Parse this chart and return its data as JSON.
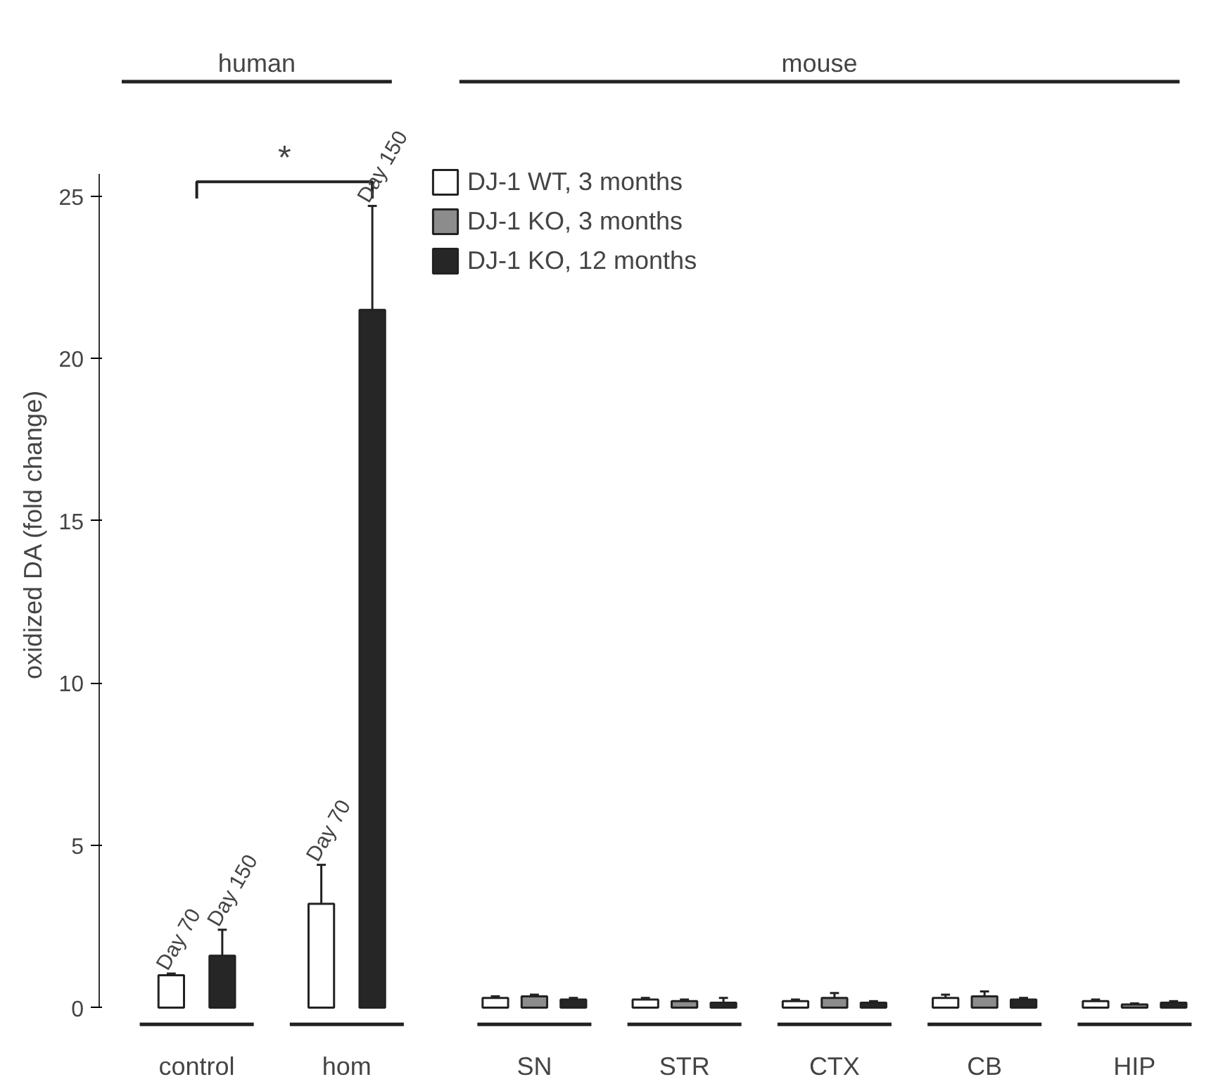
{
  "chart_data": {
    "type": "bar",
    "ylabel": "oxidized DA (fold change)",
    "categories": [
      "control",
      "hom",
      "SN",
      "STR",
      "CTX",
      "CB",
      "HIP"
    ],
    "series": [
      {
        "name": "Day 70",
        "color": "#ffffff",
        "values": [
          1.0,
          3.2,
          null,
          null,
          null,
          null,
          null
        ],
        "errors": [
          0.05,
          1.2,
          null,
          null,
          null,
          null,
          null
        ]
      },
      {
        "name": "Day 150",
        "color": "#262626",
        "values": [
          1.6,
          21.5,
          null,
          null,
          null,
          null,
          null
        ],
        "errors": [
          0.8,
          3.2,
          null,
          null,
          null,
          null,
          null
        ]
      },
      {
        "name": "DJ-1 WT, 3 months",
        "color": "#ffffff",
        "values": [
          null,
          null,
          0.3,
          0.25,
          0.2,
          0.3,
          0.2
        ],
        "errors": [
          null,
          null,
          0.05,
          0.05,
          0.05,
          0.1,
          0.05
        ]
      },
      {
        "name": "DJ-1 KO, 3 months",
        "color": "#8c8c8c",
        "values": [
          null,
          null,
          0.35,
          0.2,
          0.3,
          0.35,
          0.1
        ],
        "errors": [
          null,
          null,
          0.05,
          0.05,
          0.15,
          0.15,
          0.03
        ]
      },
      {
        "name": "DJ-1 KO, 12 months",
        "color": "#262626",
        "values": [
          null,
          null,
          0.25,
          0.15,
          0.15,
          0.25,
          0.15
        ],
        "errors": [
          null,
          null,
          0.05,
          0.15,
          0.05,
          0.05,
          0.05
        ]
      }
    ],
    "ylim": [
      0,
      25.7
    ],
    "yticks": [
      0,
      5,
      10,
      15,
      20,
      25
    ],
    "grid": false,
    "legend": "top left",
    "annotations": [
      "human",
      "mouse",
      "*"
    ]
  }
}
